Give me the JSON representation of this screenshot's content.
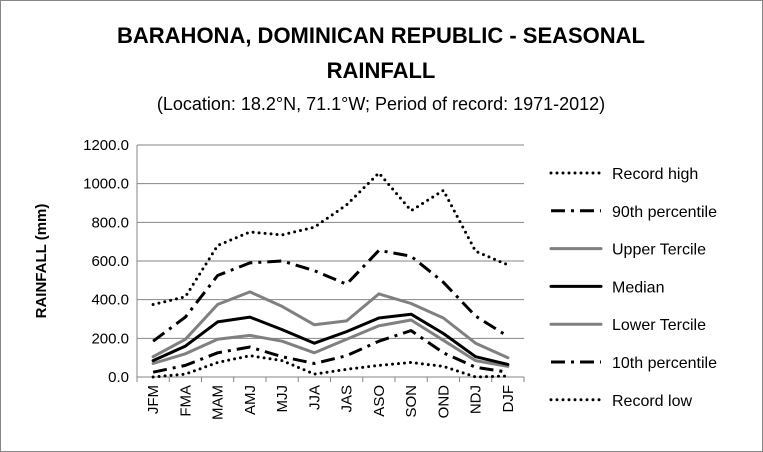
{
  "chart_data": {
    "type": "line",
    "title_line1": "BARAHONA, DOMINICAN REPUBLIC - SEASONAL",
    "title_line2": "RAINFALL",
    "subtitle": "(Location: 18.2°N, 71.1°W; Period of record: 1971-2012)",
    "ylabel": "RAINFALL (mm)",
    "xlabel": "",
    "ylim": [
      0,
      1200
    ],
    "yticks": [
      "0.0",
      "200.0",
      "400.0",
      "600.0",
      "800.0",
      "1000.0",
      "1200.0"
    ],
    "grid": "horizontal",
    "legend_position": "right",
    "categories": [
      "JFM",
      "FMA",
      "MAM",
      "AMJ",
      "MJJ",
      "JJA",
      "JAS",
      "ASO",
      "SON",
      "OND",
      "NDJ",
      "DJF"
    ],
    "series": [
      {
        "name": "Record high",
        "style": "dotted",
        "color": "#000000",
        "values": [
          375,
          415,
          680,
          750,
          735,
          775,
          890,
          1055,
          860,
          965,
          650,
          580
        ]
      },
      {
        "name": "90th percentile",
        "style": "dashdot",
        "color": "#000000",
        "values": [
          185,
          310,
          525,
          590,
          600,
          550,
          480,
          655,
          625,
          490,
          315,
          210
        ]
      },
      {
        "name": "Upper Tercile",
        "style": "solid",
        "color": "#808080",
        "values": [
          105,
          195,
          375,
          440,
          365,
          270,
          290,
          430,
          380,
          305,
          175,
          100
        ]
      },
      {
        "name": "Median",
        "style": "solid",
        "color": "#000000",
        "values": [
          85,
          160,
          285,
          310,
          245,
          175,
          235,
          305,
          325,
          225,
          105,
          65
        ]
      },
      {
        "name": "Lower Tercile",
        "style": "solid",
        "color": "#808080",
        "values": [
          70,
          120,
          195,
          215,
          185,
          125,
          195,
          265,
          295,
          190,
          85,
          55
        ]
      },
      {
        "name": "10th percentile",
        "style": "dashdot",
        "color": "#000000",
        "values": [
          25,
          60,
          125,
          155,
          105,
          70,
          110,
          185,
          240,
          125,
          50,
          25
        ]
      },
      {
        "name": "Record low",
        "style": "dotted",
        "color": "#000000",
        "values": [
          0,
          15,
          75,
          110,
          85,
          15,
          40,
          60,
          75,
          55,
          0,
          5
        ]
      }
    ]
  }
}
